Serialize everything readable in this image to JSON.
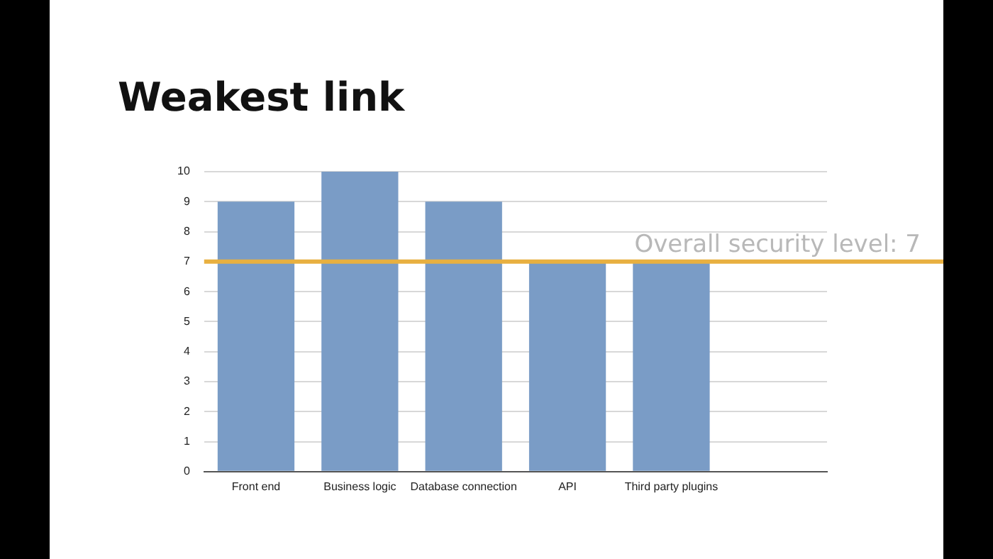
{
  "chart_data": {
    "type": "bar",
    "title": "Weakest link",
    "categories": [
      "Front end",
      "Business logic",
      "Database connection",
      "API",
      "Third party plugins",
      null
    ],
    "values": [
      9,
      10,
      9,
      7,
      7,
      null
    ],
    "color": "#7a9cc6",
    "ylim": [
      0,
      10
    ],
    "yticks": [
      0,
      1,
      2,
      3,
      4,
      5,
      6,
      7,
      8,
      9,
      10
    ],
    "grid": "y",
    "ref_lines": [
      {
        "axis": "y",
        "value": 7,
        "label": "Overall security level: 7",
        "color": "#e8b040"
      }
    ]
  }
}
